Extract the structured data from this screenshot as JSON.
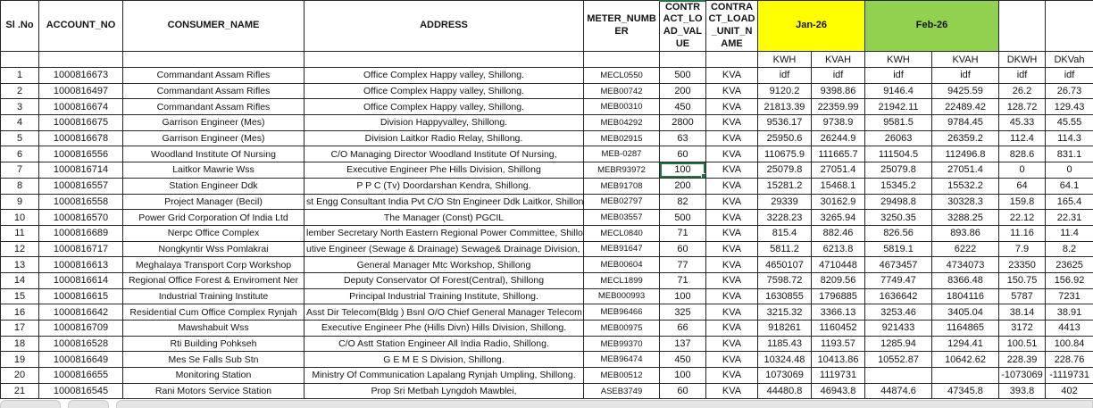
{
  "sheet": {
    "headers": {
      "sl_no": "Sl .No",
      "account_no": "ACCOUNT_NO",
      "consumer_name": "CONSUMER_NAME",
      "address": "ADDRESS",
      "meter_number": "METER_NUMBER",
      "contract_load_value": "CONTRACT_LOAD_VALUE",
      "contract_load_unit_name": "CONTRACT_LOAD_UNIT_NAME",
      "jan": "Jan-26",
      "feb": "Feb-26"
    },
    "sub_headers": [
      "KWH",
      "KVAH",
      "KWH",
      "KVAH",
      "DKWH",
      "DKVah"
    ],
    "colors": {
      "jan_header_bg": "#FFFF00",
      "feb_header_bg": "#92D050",
      "selection_border": "#217346",
      "grid_line": "#262626"
    },
    "selection": {
      "row_index": 6,
      "col_index": 5,
      "value": "100"
    },
    "rows": [
      [
        "1",
        "1000816673",
        "Commandant Assam Rifles",
        "Office Complex Happy valley, Shillong.",
        "MECL0550",
        "500",
        "KVA",
        "idf",
        "idf",
        "idf",
        "idf",
        "idf",
        "idf"
      ],
      [
        "2",
        "1000816497",
        "Commandant Assam Rifles",
        "Office Complex Happy valley, Shillong.",
        "MEB00742",
        "200",
        "KVA",
        "9120.2",
        "9398.86",
        "9146.4",
        "9425.59",
        "26.2",
        "26.73"
      ],
      [
        "3",
        "1000816674",
        "Commandant Assam Rifles",
        "Office Complex Happy valley, Shillong.",
        "MEB00310",
        "450",
        "KVA",
        "21813.39",
        "22359.99",
        "21942.11",
        "22489.42",
        "128.72",
        "129.43"
      ],
      [
        "4",
        "1000816675",
        "Garrison Engineer (Mes)",
        "Division Happyvalley, Shillong.",
        "MEB04292",
        "2800",
        "KVA",
        "9536.17",
        "9738.9",
        "9581.5",
        "9784.45",
        "45.33",
        "45.55"
      ],
      [
        "5",
        "1000816678",
        "Garrison Engineer (Mes)",
        "Division Laitkor Radio Relay, Shillong.",
        "MEB02915",
        "63",
        "KVA",
        "25950.6",
        "26244.9",
        "26063",
        "26359.2",
        "112.4",
        "114.3"
      ],
      [
        "6",
        "1000816556",
        "Woodland Institute Of Nursing",
        "C/O Managing Director Woodland Institute Of Nursing,",
        "MEB-0287",
        "60",
        "KVA",
        "110675.9",
        "111665.7",
        "111504.5",
        "112496.8",
        "828.6",
        "831.1"
      ],
      [
        "7",
        "1000816714",
        "Laitkor Mawrie Wss",
        "Executive Engineer Phe Hills Division, Shillong",
        "MEBR93972",
        "100",
        "KVA",
        "25079.8",
        "27051.4",
        "25079.8",
        "27051.4",
        "0",
        "0"
      ],
      [
        "8",
        "1000816557",
        "Station Engineer Ddk",
        "P P C (Tv) Doordarshan Kendra, Shillong.",
        "MEB91708",
        "200",
        "KVA",
        "15281.2",
        "15468.1",
        "15345.2",
        "15532.2",
        "64",
        "64.1"
      ],
      [
        "9",
        "1000816558",
        "Project Manager (Becil)",
        "st Engg Consultant India Pvt C/O Stn Engineer Ddk Laitkor, Shillong. #",
        "MEB02797",
        "82",
        "KVA",
        "29339",
        "30162.9",
        "29498.8",
        "30328.3",
        "159.8",
        "165.4"
      ],
      [
        "10",
        "1000816570",
        "Power Grid Corporation Of India Ltd",
        "The Manager (Const) PGCIL",
        "MEB03557",
        "500",
        "KVA",
        "3228.23",
        "3265.94",
        "3250.35",
        "3288.25",
        "22.12",
        "22.31"
      ],
      [
        "11",
        "1000816689",
        "Nerpc Office Complex",
        "lember Secretary North Eastern Regional Power Committee, Shillong",
        "MECL0840",
        "71",
        "KVA",
        "815.4",
        "882.46",
        "826.56",
        "893.86",
        "11.16",
        "11.4"
      ],
      [
        "12",
        "1000816717",
        "Nongkyntir Wss Pomlakrai",
        "utive Engineer (Sewage & Drainage) Sewage& Drainage Division, Shi",
        "MEB91647",
        "60",
        "KVA",
        "5811.2",
        "6213.8",
        "5819.1",
        "6222",
        "7.9",
        "8.2"
      ],
      [
        "13",
        "1000816613",
        "Meghalaya Transport Corp Workshop",
        "General Manager Mtc Workshop, Shillong",
        "MEB00604",
        "77",
        "KVA",
        "4650107",
        "4710448",
        "4673457",
        "4734073",
        "23350",
        "23625"
      ],
      [
        "14",
        "1000816614",
        "Regional Office Forest & Enviroment Ner",
        "Deputy Conservator Of Forest(Central), Shillong",
        "MECL1899",
        "71",
        "KVA",
        "7598.72",
        "8209.56",
        "7749.47",
        "8366.48",
        "150.75",
        "156.92"
      ],
      [
        "15",
        "1000816615",
        "Industrial Training Institute",
        "Principal Industrial Training Institute, Shillong.",
        "MEB000993",
        "100",
        "KVA",
        "1630855",
        "1796885",
        "1636642",
        "1804116",
        "5787",
        "7231"
      ],
      [
        "16",
        "1000816642",
        "Residential Cum Office Complex Rynjah",
        "Asst Dir Telecom(Bldg ) Bsnl O/O Chief General Manager Telecom",
        "MEB96466",
        "325",
        "KVA",
        "3215.32",
        "3366.13",
        "3253.46",
        "3405.04",
        "38.14",
        "38.91"
      ],
      [
        "17",
        "1000816709",
        "Mawshabuit Wss",
        "Executive Engineer Phe (Hills Divn) Hills Division, Shillong.",
        "MEB00975",
        "66",
        "KVA",
        "918261",
        "1160452",
        "921433",
        "1164865",
        "3172",
        "4413"
      ],
      [
        "18",
        "1000816528",
        "Rti Building Pohkseh",
        "C/O Astt Station Engineer All India Radio, Shillong.",
        "MEB99370",
        "137",
        "KVA",
        "1185.43",
        "1193.57",
        "1285.94",
        "1294.41",
        "100.51",
        "100.84"
      ],
      [
        "19",
        "1000816649",
        "Mes Se Falls Sub Stn",
        "G E M E S Division, Shillong.",
        "MEB96474",
        "450",
        "KVA",
        "10324.48",
        "10413.86",
        "10552.87",
        "10642.62",
        "228.39",
        "228.76"
      ],
      [
        "20",
        "1000816655",
        "Monitoring Station",
        "Ministry Of Communication Lapalang Rynjah Umpling, Shillong.",
        "MEB00512",
        "100",
        "KVA",
        "1073069",
        "1119731",
        "",
        "",
        "-1073069",
        "-1119731"
      ],
      [
        "21",
        "1000816545",
        "Rani Motors Service Station",
        "Prop Sri Metbah Lyngdoh Mawblei,",
        "ASEB3749",
        "60",
        "KVA",
        "44480.8",
        "46943.8",
        "44874.6",
        "47345.8",
        "393.8",
        "402"
      ]
    ]
  }
}
